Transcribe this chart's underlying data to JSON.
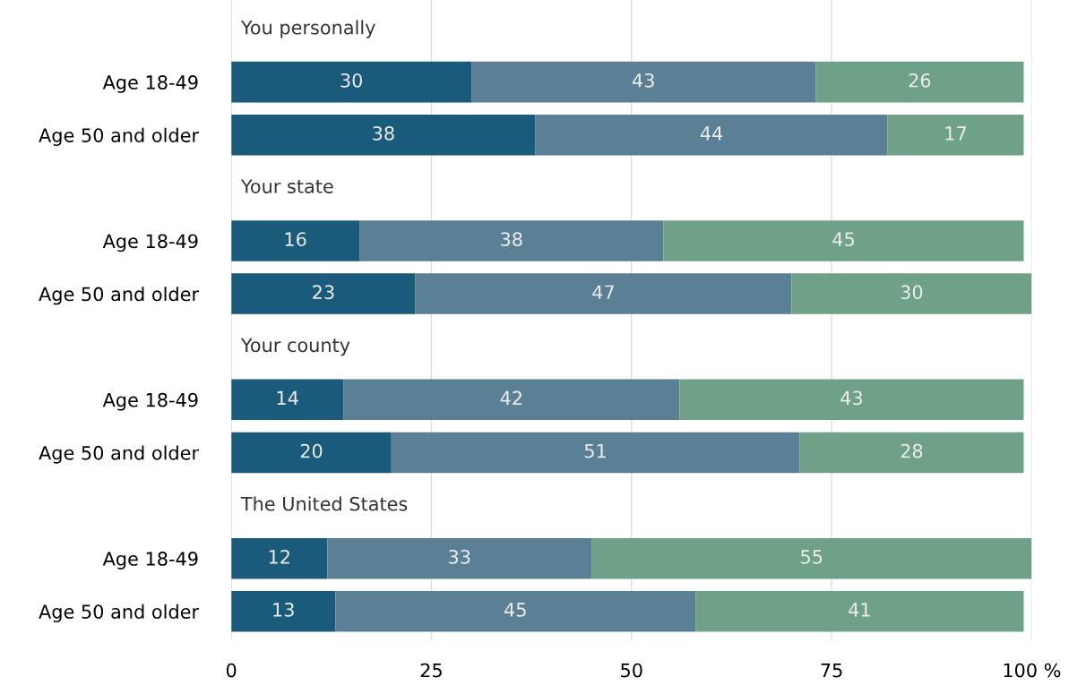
{
  "chart_data": {
    "type": "bar",
    "orientation": "horizontal",
    "stacked": true,
    "categories": [
      null,
      "Age 18-49",
      "Age 50 and older",
      null,
      "Age 18-49",
      "Age 50 and older",
      null,
      "Age 18-49",
      "Age 50 and older",
      null,
      "Age 18-49",
      "Age 50 and older"
    ],
    "series": [
      {
        "color": "#1a5a7a",
        "values": [
          null,
          30,
          38,
          null,
          16,
          23,
          null,
          14,
          20,
          null,
          12,
          13
        ]
      },
      {
        "color": "#5b8096",
        "values": [
          null,
          43,
          44,
          null,
          38,
          47,
          null,
          42,
          51,
          null,
          33,
          45
        ]
      },
      {
        "color": "#6fa088",
        "values": [
          null,
          26,
          17,
          null,
          45,
          30,
          null,
          43,
          28,
          null,
          55,
          41
        ]
      }
    ],
    "annotations": [
      "You personally",
      "Your state",
      "Your county",
      "The United States"
    ],
    "xlim": [
      0,
      100
    ],
    "xticks": [
      0,
      25,
      50,
      75,
      {
        "value": 100,
        "label": "100 %"
      }
    ],
    "grid": "x",
    "data_labels": true,
    "legend": false
  }
}
